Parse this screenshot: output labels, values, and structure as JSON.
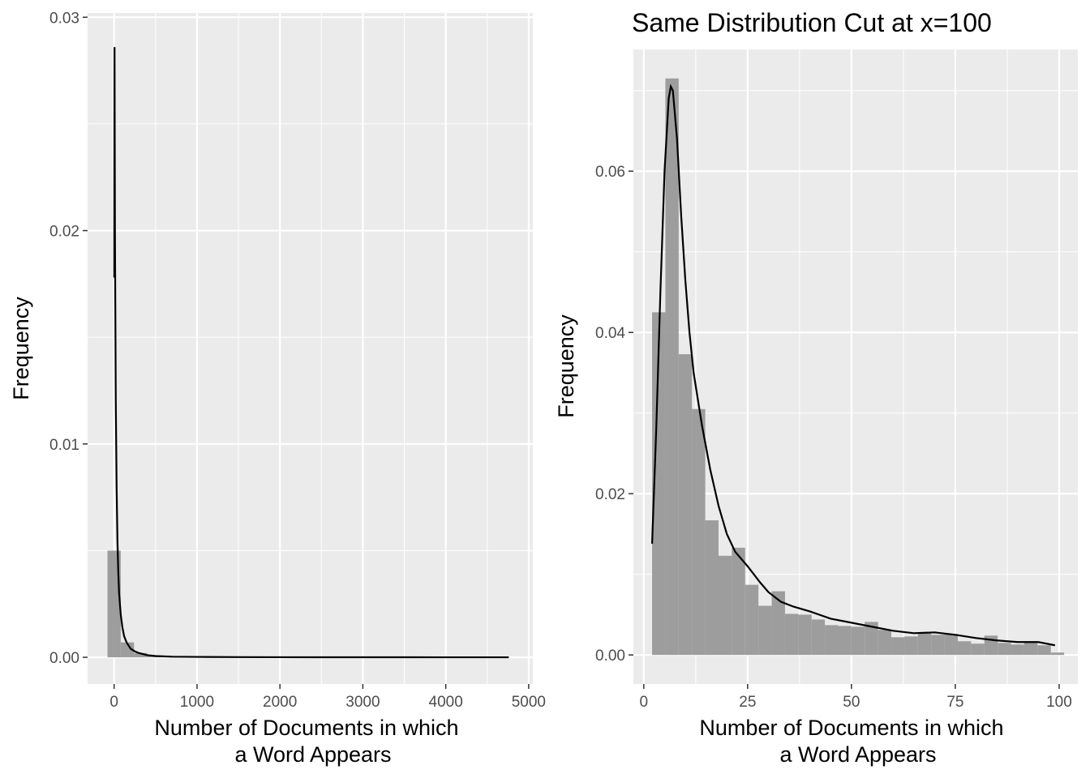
{
  "chart_data": [
    {
      "type": "bar",
      "title": "",
      "xlabel_lines": [
        "Number of Documents in which",
        "a Word Appears"
      ],
      "ylabel": "Frequency",
      "xlim": [
        -320,
        5050
      ],
      "ylim": [
        -0.00125,
        0.0302
      ],
      "xticks": [
        0,
        1000,
        2000,
        3000,
        4000,
        5000
      ],
      "xtick_labels": [
        "0",
        "1000",
        "2000",
        "3000",
        "4000",
        "5000"
      ],
      "yticks": [
        0,
        0.01,
        0.02,
        0.03
      ],
      "ytick_labels": [
        "0.00",
        "0.01",
        "0.02",
        "0.03"
      ],
      "grid": true,
      "histogram": {
        "bin_width": 160,
        "bins": [
          {
            "x0": -80,
            "x1": 80,
            "density": 0.005
          },
          {
            "x0": 80,
            "x1": 240,
            "density": 0.0007
          },
          {
            "x0": 240,
            "x1": 400,
            "density": 0.0002
          },
          {
            "x0": 400,
            "x1": 560,
            "density": 8e-05
          },
          {
            "x0": 560,
            "x1": 720,
            "density": 4e-05
          },
          {
            "x0": 720,
            "x1": 880,
            "density": 2e-05
          }
        ]
      },
      "density_curve": {
        "x": [
          2,
          5,
          10,
          20,
          30,
          40,
          50,
          60,
          80,
          100,
          120,
          150,
          200,
          250,
          300,
          400,
          500,
          700,
          1000,
          1500,
          2000,
          3000,
          4000,
          4760
        ],
        "y": [
          0.0178,
          0.0286,
          0.02,
          0.012,
          0.008,
          0.0055,
          0.004,
          0.003,
          0.002,
          0.0014,
          0.001,
          0.0007,
          0.0004,
          0.00028,
          0.0002,
          0.0001,
          6e-05,
          3e-05,
          2e-05,
          1e-05,
          5e-06,
          3e-06,
          2e-06,
          1e-06
        ]
      }
    },
    {
      "type": "bar",
      "title": "Same Distribution Cut at x=100",
      "xlabel_lines": [
        "Number of Documents in which",
        "a Word Appears"
      ],
      "ylabel": "Frequency",
      "xlim": [
        -2.5,
        104.5
      ],
      "ylim": [
        -0.0036,
        0.0751
      ],
      "xticks": [
        0,
        25,
        50,
        75,
        100
      ],
      "xtick_labels": [
        "0",
        "25",
        "50",
        "75",
        "100"
      ],
      "yticks": [
        0,
        0.02,
        0.04,
        0.06
      ],
      "ytick_labels": [
        "0.00",
        "0.02",
        "0.04",
        "0.06"
      ],
      "grid": true,
      "histogram": {
        "bin_width": 3.2,
        "bins": [
          {
            "x0": 2.0,
            "x1": 5.2,
            "density": 0.0425
          },
          {
            "x0": 5.2,
            "x1": 8.4,
            "density": 0.0715
          },
          {
            "x0": 8.4,
            "x1": 11.6,
            "density": 0.0373
          },
          {
            "x0": 11.6,
            "x1": 14.8,
            "density": 0.0305
          },
          {
            "x0": 14.8,
            "x1": 18.0,
            "density": 0.0167
          },
          {
            "x0": 18.0,
            "x1": 21.2,
            "density": 0.0123
          },
          {
            "x0": 21.2,
            "x1": 24.4,
            "density": 0.0133
          },
          {
            "x0": 24.4,
            "x1": 27.6,
            "density": 0.0087
          },
          {
            "x0": 27.6,
            "x1": 30.8,
            "density": 0.0061
          },
          {
            "x0": 30.8,
            "x1": 34.0,
            "density": 0.0079
          },
          {
            "x0": 34.0,
            "x1": 37.2,
            "density": 0.0051
          },
          {
            "x0": 37.2,
            "x1": 40.4,
            "density": 0.005
          },
          {
            "x0": 40.4,
            "x1": 43.6,
            "density": 0.0044
          },
          {
            "x0": 43.6,
            "x1": 46.8,
            "density": 0.0037
          },
          {
            "x0": 46.8,
            "x1": 50.0,
            "density": 0.0036
          },
          {
            "x0": 50.0,
            "x1": 53.2,
            "density": 0.0035
          },
          {
            "x0": 53.2,
            "x1": 56.4,
            "density": 0.0041
          },
          {
            "x0": 56.4,
            "x1": 59.6,
            "density": 0.0031
          },
          {
            "x0": 59.6,
            "x1": 62.8,
            "density": 0.0022
          },
          {
            "x0": 62.8,
            "x1": 66.0,
            "density": 0.0023
          },
          {
            "x0": 66.0,
            "x1": 69.2,
            "density": 0.0027
          },
          {
            "x0": 69.2,
            "x1": 72.4,
            "density": 0.0025
          },
          {
            "x0": 72.4,
            "x1": 75.6,
            "density": 0.0026
          },
          {
            "x0": 75.6,
            "x1": 78.8,
            "density": 0.0017
          },
          {
            "x0": 78.8,
            "x1": 82.0,
            "density": 0.0014
          },
          {
            "x0": 82.0,
            "x1": 85.2,
            "density": 0.0024
          },
          {
            "x0": 85.2,
            "x1": 88.4,
            "density": 0.0015
          },
          {
            "x0": 88.4,
            "x1": 91.6,
            "density": 0.0013
          },
          {
            "x0": 91.6,
            "x1": 94.8,
            "density": 0.0017
          },
          {
            "x0": 94.8,
            "x1": 98.0,
            "density": 0.0012
          },
          {
            "x0": 98.0,
            "x1": 101.2,
            "density": 0.0003
          }
        ]
      },
      "density_curve": {
        "x": [
          2,
          3,
          4,
          5,
          6,
          6.5,
          7,
          8,
          9,
          10,
          11,
          12,
          14,
          16,
          18,
          20,
          22,
          25,
          28,
          30,
          33,
          36,
          40,
          45,
          50,
          55,
          60,
          65,
          70,
          75,
          80,
          85,
          90,
          95,
          99
        ],
        "y": [
          0.0138,
          0.028,
          0.045,
          0.06,
          0.069,
          0.0705,
          0.07,
          0.064,
          0.0545,
          0.0465,
          0.04,
          0.035,
          0.0285,
          0.023,
          0.0185,
          0.015,
          0.0128,
          0.011,
          0.009,
          0.0078,
          0.0066,
          0.006,
          0.0054,
          0.0045,
          0.004,
          0.0035,
          0.003,
          0.0027,
          0.0028,
          0.0025,
          0.0021,
          0.0018,
          0.0016,
          0.0016,
          0.0012
        ]
      }
    }
  ],
  "colors": {
    "panel_background": "#ebebeb",
    "grid_major": "#ffffff",
    "histogram_fill": "#999999",
    "density_line": "#000000",
    "tick_text": "#4d4d4d"
  }
}
